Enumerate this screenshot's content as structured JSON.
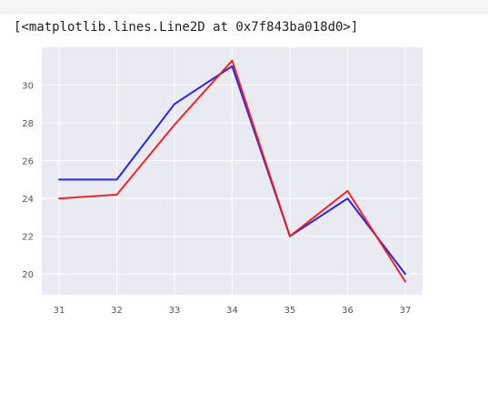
{
  "output": {
    "repr_text": "[<matplotlib.lines.Line2D at 0x7f843ba018d0>]"
  },
  "chart_data": {
    "type": "line",
    "x": [
      31,
      32,
      33,
      34,
      35,
      36,
      37
    ],
    "series": [
      {
        "color": "#1a1aee",
        "values": [
          25.0,
          25.0,
          29.0,
          31.0,
          22.0,
          24.0,
          20.0
        ]
      },
      {
        "color": "#ee1a1a",
        "values": [
          24.0,
          24.2,
          27.9,
          31.3,
          22.0,
          24.4,
          19.6
        ]
      }
    ],
    "xticks": [
      "31",
      "32",
      "33",
      "34",
      "35",
      "36",
      "37"
    ],
    "yticks": [
      "20",
      "22",
      "24",
      "26",
      "28",
      "30"
    ],
    "xlim": [
      30.7,
      37.3
    ],
    "ylim": [
      18.9,
      32.0
    ],
    "grid": true,
    "style": "seaborn-darkgrid",
    "background": "#eaeaf2"
  }
}
